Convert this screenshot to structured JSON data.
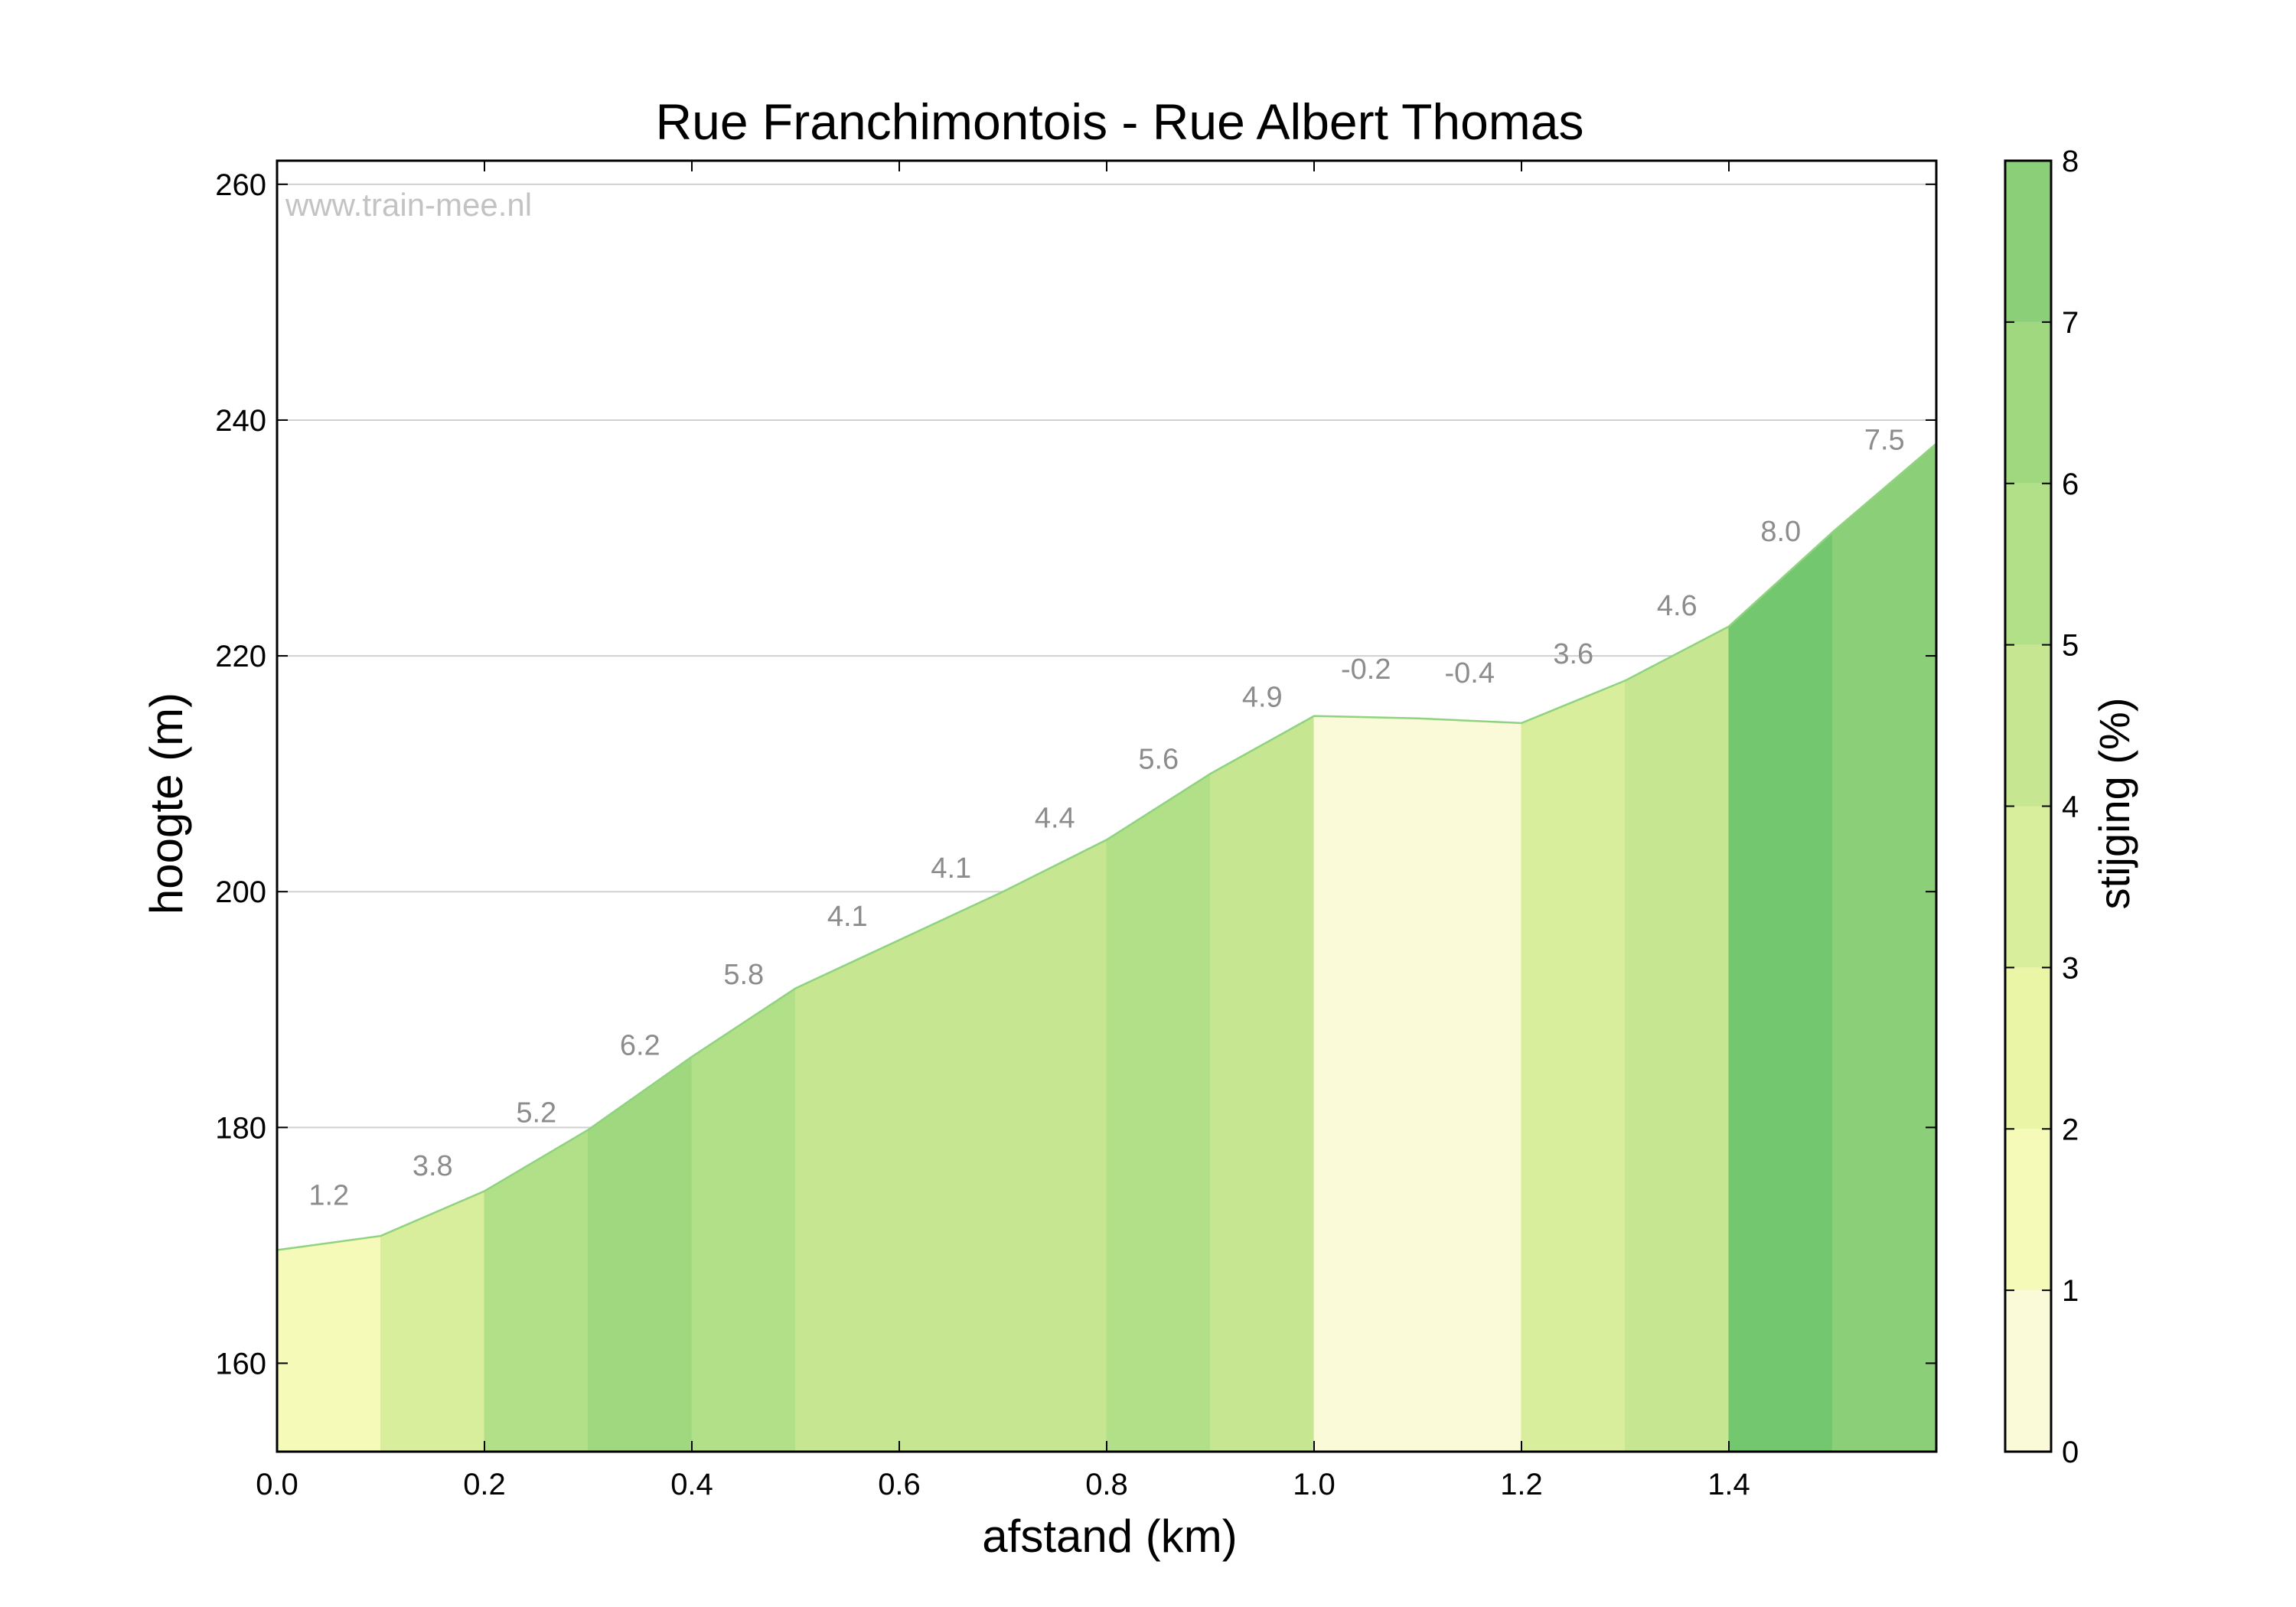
{
  "chart_data": {
    "type": "area",
    "title": "Rue Franchimontois - Rue Albert Thomas",
    "xlabel": "afstand (km)",
    "ylabel": "hoogte (m)",
    "colorbar_label": "stijging (%)",
    "watermark": "www.train-mee.nl",
    "xlim": [
      0.0,
      1.6
    ],
    "ylim": [
      152.5,
      262
    ],
    "x_ticks": [
      "0.0",
      "0.2",
      "0.4",
      "0.6",
      "0.8",
      "1.0",
      "1.2",
      "1.4"
    ],
    "y_ticks": [
      "160",
      "180",
      "200",
      "220",
      "240",
      "260"
    ],
    "grid": "horizontal",
    "profile": {
      "x": [
        0.0,
        0.1,
        0.2,
        0.3,
        0.4,
        0.5,
        0.6,
        0.7,
        0.8,
        0.9,
        1.0,
        1.1,
        1.2,
        1.3,
        1.4,
        1.5,
        1.6
      ],
      "y": [
        169.6,
        170.8,
        174.6,
        179.8,
        186.0,
        191.8,
        195.9,
        200.0,
        204.4,
        210.0,
        214.9,
        214.7,
        214.3,
        217.9,
        222.5,
        230.5,
        238.0
      ]
    },
    "segments": [
      {
        "from": 0.0,
        "to": 0.1,
        "grade": 1.2,
        "label": "1.2"
      },
      {
        "from": 0.1,
        "to": 0.2,
        "grade": 3.8,
        "label": "3.8"
      },
      {
        "from": 0.2,
        "to": 0.3,
        "grade": 5.2,
        "label": "5.2"
      },
      {
        "from": 0.3,
        "to": 0.4,
        "grade": 6.2,
        "label": "6.2"
      },
      {
        "from": 0.4,
        "to": 0.5,
        "grade": 5.8,
        "label": "5.8"
      },
      {
        "from": 0.5,
        "to": 0.6,
        "grade": 4.1,
        "label": "4.1"
      },
      {
        "from": 0.6,
        "to": 0.7,
        "grade": 4.1,
        "label": "4.1"
      },
      {
        "from": 0.7,
        "to": 0.8,
        "grade": 4.4,
        "label": "4.4"
      },
      {
        "from": 0.8,
        "to": 0.9,
        "grade": 5.6,
        "label": "5.6"
      },
      {
        "from": 0.9,
        "to": 1.0,
        "grade": 4.9,
        "label": "4.9"
      },
      {
        "from": 1.0,
        "to": 1.1,
        "grade": -0.2,
        "label": "-0.2"
      },
      {
        "from": 1.1,
        "to": 1.2,
        "grade": -0.4,
        "label": "-0.4"
      },
      {
        "from": 1.2,
        "to": 1.3,
        "grade": 3.6,
        "label": "3.6"
      },
      {
        "from": 1.3,
        "to": 1.4,
        "grade": 4.6,
        "label": "4.6"
      },
      {
        "from": 1.4,
        "to": 1.5,
        "grade": 8.0,
        "label": "8.0"
      },
      {
        "from": 1.5,
        "to": 1.6,
        "grade": 7.5,
        "label": "7.5"
      }
    ],
    "colorbar": {
      "range": [
        0,
        8
      ],
      "ticks": [
        "0",
        "1",
        "2",
        "3",
        "4",
        "5",
        "6",
        "7",
        "8"
      ],
      "colors": [
        "#fafad8",
        "#f5fab8",
        "#eaf5a5",
        "#d8ee9c",
        "#c6e692",
        "#b2e089",
        "#9fd87f",
        "#8ccf79",
        "#73c76f"
      ]
    },
    "colors": {
      "line": "#8fd27f",
      "grid": "#d0d0d0",
      "axis": "#000000",
      "grade_label": "#8c8c8c",
      "watermark": "#c3c3c3"
    }
  }
}
